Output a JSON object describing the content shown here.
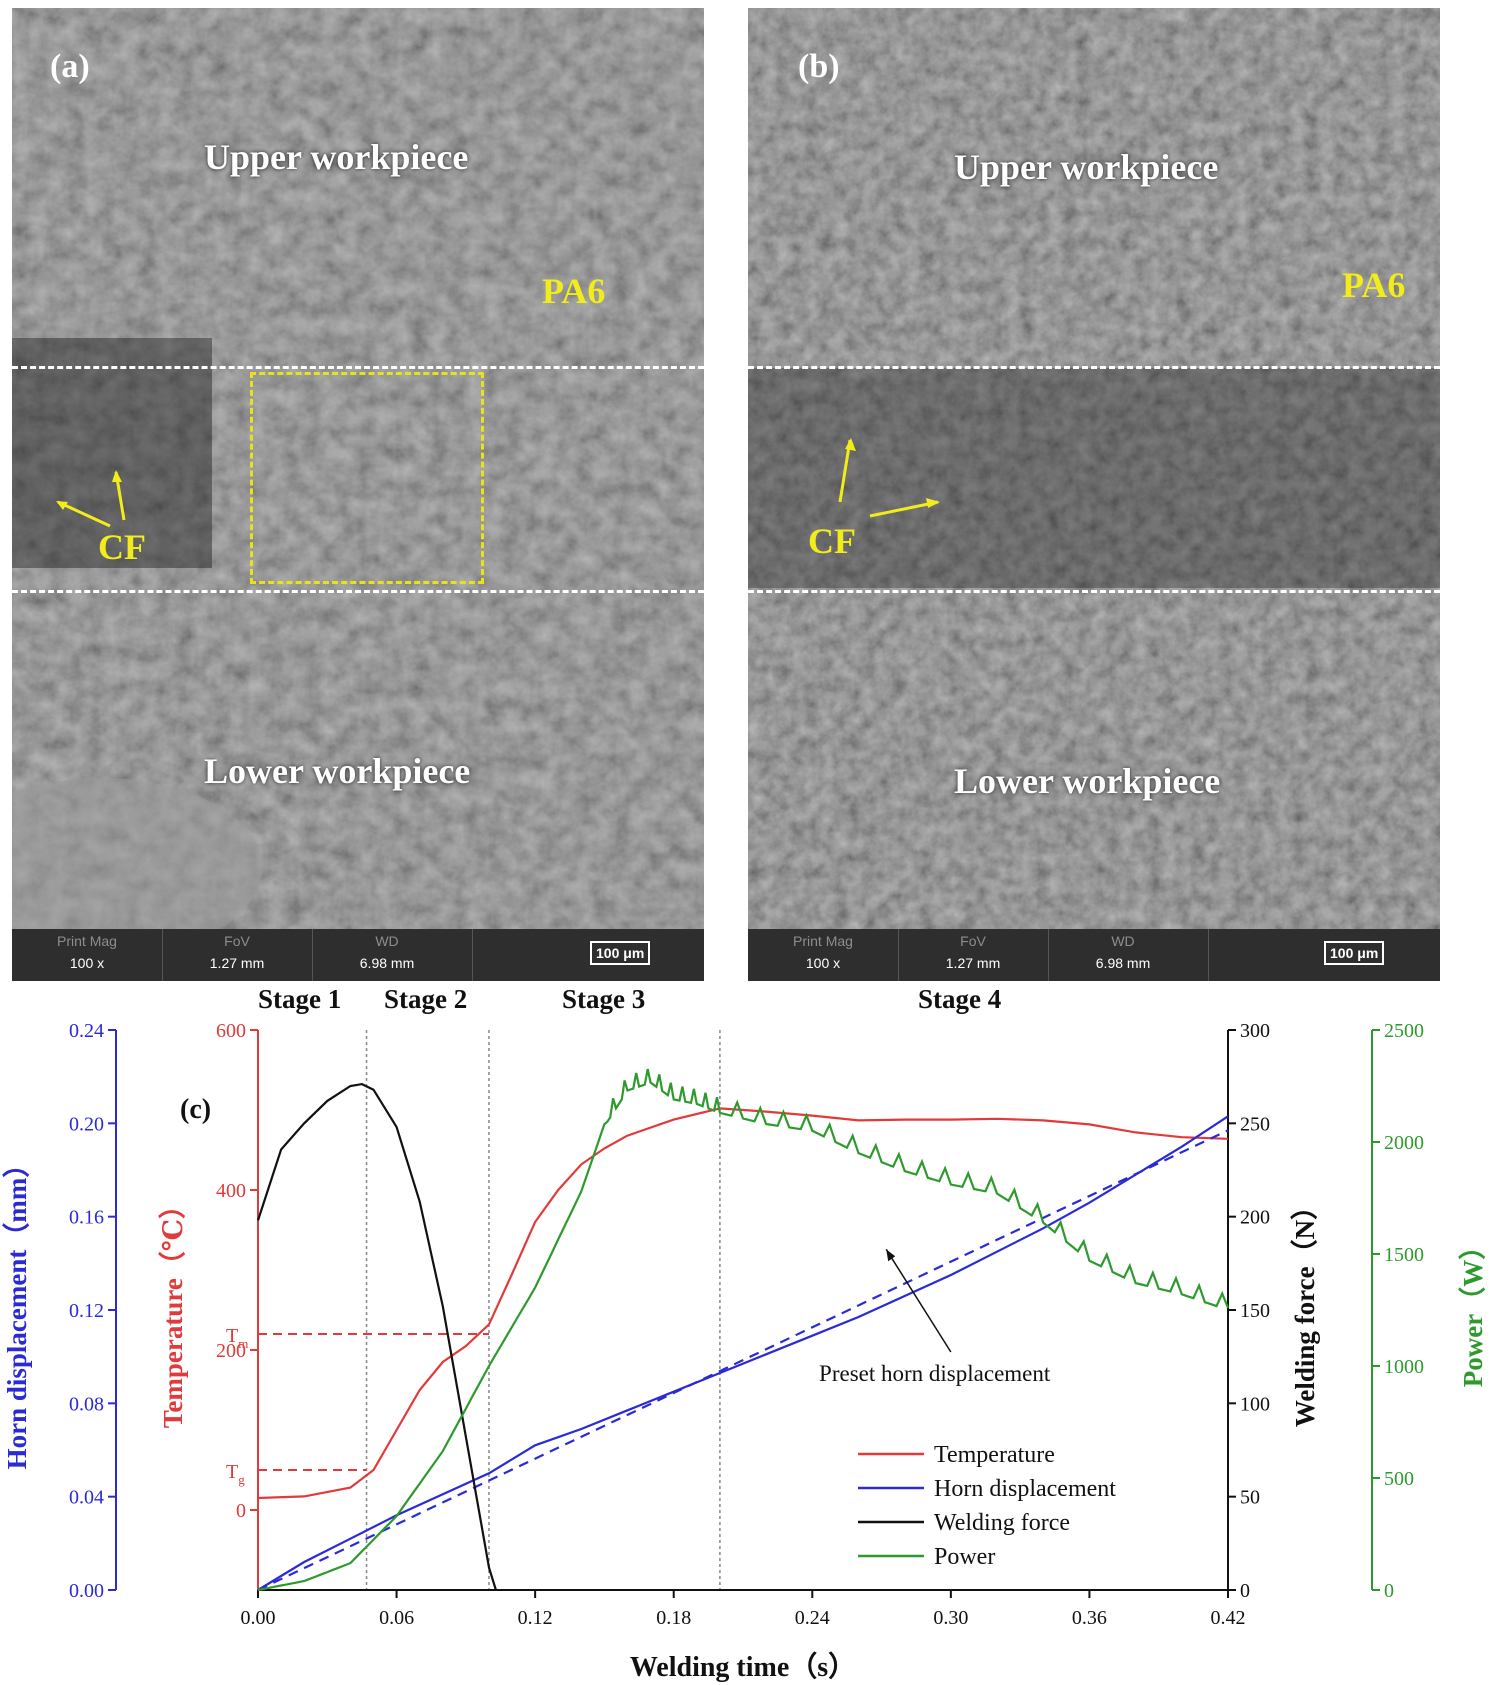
{
  "panels": [
    {
      "letter": "(a)",
      "upper_label": "Upper workpiece",
      "lower_label": "Lower workpiece",
      "material_label": "PA6",
      "fiber_label": "CF",
      "info_bar": {
        "mag_header": "Print Mag",
        "mag_value": "100 x",
        "fov_header": "FoV",
        "fov_value": "1.27 mm",
        "wd_header": "WD",
        "wd_value": "6.98 mm",
        "scale": "100 μm"
      }
    },
    {
      "letter": "(b)",
      "upper_label": "Upper workpiece",
      "lower_label": "Lower workpiece",
      "material_label": "PA6",
      "fiber_label": "CF",
      "info_bar": {
        "mag_header": "Print Mag",
        "mag_value": "100 x",
        "fov_header": "FoV",
        "fov_value": "1.27 mm",
        "wd_header": "WD",
        "wd_value": "6.98 mm",
        "scale": "100 μm"
      }
    }
  ],
  "chart_data": {
    "type": "line",
    "panel_label": "(c)",
    "stages": [
      "Stage 1",
      "Stage 2",
      "Stage 3",
      "Stage 4"
    ],
    "stage_boundaries_s": [
      0.047,
      0.1,
      0.2
    ],
    "xlabel": "Welding time（s）",
    "xlim": [
      0,
      0.42
    ],
    "xticks": [
      0.0,
      0.06,
      0.12,
      0.18,
      0.24,
      0.3,
      0.36,
      0.42
    ],
    "axes": {
      "horn": {
        "label": "Horn displacement（mm）",
        "color": "#2a2ad6",
        "lim": [
          0,
          0.24
        ],
        "ticks": [
          0.0,
          0.04,
          0.08,
          0.12,
          0.16,
          0.2,
          0.24
        ]
      },
      "temperature": {
        "label": "Temperature（℃）",
        "color": "#e23a3a",
        "lim": [
          -100,
          600
        ],
        "ticks": [
          0,
          200,
          400,
          600
        ]
      },
      "force": {
        "label": "Welding force（N）",
        "color": "#111111",
        "lim": [
          0,
          300
        ],
        "ticks": [
          0,
          50,
          100,
          150,
          200,
          250,
          300
        ]
      },
      "power": {
        "label": "Power（W）",
        "color": "#2e9a2e",
        "lim": [
          0,
          2500
        ],
        "ticks": [
          0,
          500,
          1000,
          1500,
          2000,
          2500
        ]
      }
    },
    "reference_levels": [
      {
        "name": "Tm",
        "sub": "m",
        "value": 220,
        "x_end": 0.1
      },
      {
        "name": "Tg",
        "sub": "g",
        "value": 50,
        "x_end": 0.047
      }
    ],
    "annotation": {
      "text": "Preset horn displacement",
      "x": 0.28,
      "y_mm": 0.16
    },
    "legend_position": "lower-right",
    "series": [
      {
        "name": "Temperature",
        "axis": "temperature",
        "color": "#e23a3a",
        "dash": false,
        "x": [
          0,
          0.02,
          0.04,
          0.05,
          0.06,
          0.07,
          0.08,
          0.09,
          0.1,
          0.11,
          0.12,
          0.13,
          0.14,
          0.15,
          0.16,
          0.18,
          0.2,
          0.22,
          0.24,
          0.26,
          0.28,
          0.3,
          0.32,
          0.34,
          0.36,
          0.38,
          0.4,
          0.42
        ],
        "y": [
          15,
          17,
          28,
          50,
          100,
          150,
          185,
          205,
          232,
          295,
          360,
          400,
          432,
          452,
          468,
          488,
          502,
          498,
          493,
          487,
          488,
          488,
          489,
          487,
          482,
          472,
          466,
          464
        ]
      },
      {
        "name": "Horn displacement",
        "axis": "horn",
        "color": "#2a2ad6",
        "dash": false,
        "x": [
          0,
          0.02,
          0.04,
          0.06,
          0.08,
          0.1,
          0.12,
          0.14,
          0.16,
          0.18,
          0.2,
          0.22,
          0.24,
          0.26,
          0.28,
          0.3,
          0.32,
          0.34,
          0.36,
          0.38,
          0.4,
          0.42
        ],
        "y": [
          0,
          0.012,
          0.022,
          0.032,
          0.041,
          0.05,
          0.062,
          0.069,
          0.077,
          0.085,
          0.093,
          0.101,
          0.109,
          0.117,
          0.126,
          0.135,
          0.145,
          0.155,
          0.166,
          0.178,
          0.19,
          0.203
        ]
      },
      {
        "name": "Preset horn displacement",
        "axis": "horn",
        "color": "#2a2ad6",
        "dash": true,
        "x": [
          0,
          0.42
        ],
        "y": [
          0,
          0.197
        ]
      },
      {
        "name": "Welding force",
        "axis": "force",
        "color": "#111111",
        "dash": false,
        "x": [
          0,
          0.01,
          0.02,
          0.03,
          0.04,
          0.045,
          0.05,
          0.06,
          0.07,
          0.08,
          0.09,
          0.1,
          0.103
        ],
        "y": [
          198,
          236,
          250,
          262,
          270,
          271,
          268,
          248,
          208,
          152,
          82,
          12,
          0
        ]
      },
      {
        "name": "Power",
        "axis": "power",
        "color": "#2e9a2e",
        "dash": false,
        "x": [
          0,
          0.02,
          0.04,
          0.06,
          0.08,
          0.1,
          0.12,
          0.14,
          0.15,
          0.16,
          0.17,
          0.18,
          0.19,
          0.2,
          0.22,
          0.24,
          0.26,
          0.28,
          0.3,
          0.32,
          0.34,
          0.36,
          0.38,
          0.4,
          0.42
        ],
        "y": [
          0,
          40,
          120,
          330,
          620,
          1000,
          1350,
          1780,
          2080,
          2240,
          2275,
          2200,
          2180,
          2140,
          2090,
          2060,
          1960,
          1880,
          1820,
          1780,
          1650,
          1480,
          1380,
          1330,
          1260
        ]
      }
    ]
  }
}
